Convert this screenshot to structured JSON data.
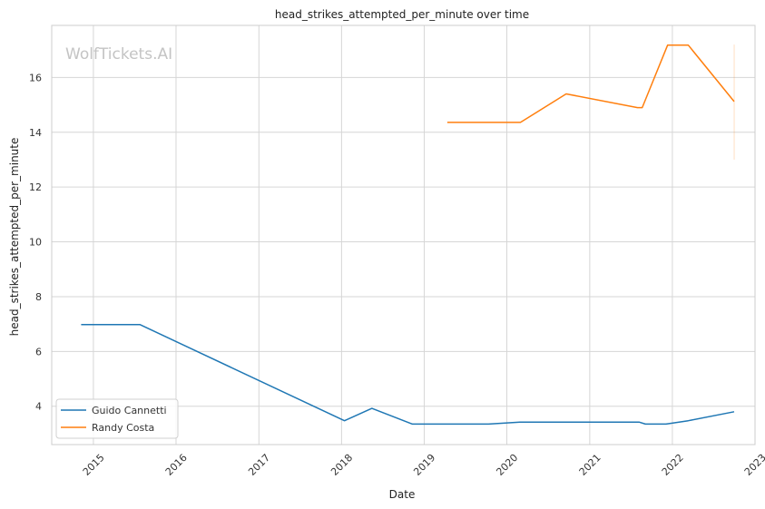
{
  "chart_data": {
    "type": "line",
    "title": "head_strikes_attempted_per_minute over time",
    "xlabel": "Date",
    "ylabel": "head_strikes_attempted_per_minute",
    "watermark": "WolfTickets.AI",
    "xlim": [
      "2014-07-01",
      "2023-01-01"
    ],
    "ylim": [
      2.6,
      17.9
    ],
    "x_ticks": [
      "2015",
      "2016",
      "2017",
      "2018",
      "2019",
      "2020",
      "2021",
      "2022",
      "2023"
    ],
    "y_ticks": [
      "4",
      "6",
      "8",
      "10",
      "12",
      "14",
      "16"
    ],
    "grid": true,
    "legend_position": "lower-left",
    "series": [
      {
        "name": "Guido Cannetti",
        "color": "#1f77b4",
        "x": [
          "2014-11-08",
          "2015-07-25",
          "2018-01-14",
          "2018-05-15",
          "2018-11-10",
          "2019-10-12",
          "2020-02-28",
          "2021-08-07",
          "2021-09-04",
          "2021-12-04",
          "2022-03-12",
          "2022-10-01"
        ],
        "y": [
          6.98,
          6.98,
          3.47,
          3.92,
          3.35,
          3.35,
          3.42,
          3.42,
          3.35,
          3.35,
          3.47,
          3.8
        ]
      },
      {
        "name": "Randy Costa",
        "color": "#ff7f0e",
        "x": [
          "2019-04-13",
          "2020-03-01",
          "2020-09-19",
          "2021-07-31",
          "2021-08-21",
          "2021-12-11",
          "2022-03-12",
          "2022-10-01"
        ],
        "y": [
          14.36,
          14.36,
          15.4,
          14.9,
          14.9,
          17.18,
          17.18,
          15.12
        ],
        "error_band": {
          "x": "2022-10-01",
          "low": 13.0,
          "high": 17.2
        }
      }
    ]
  }
}
